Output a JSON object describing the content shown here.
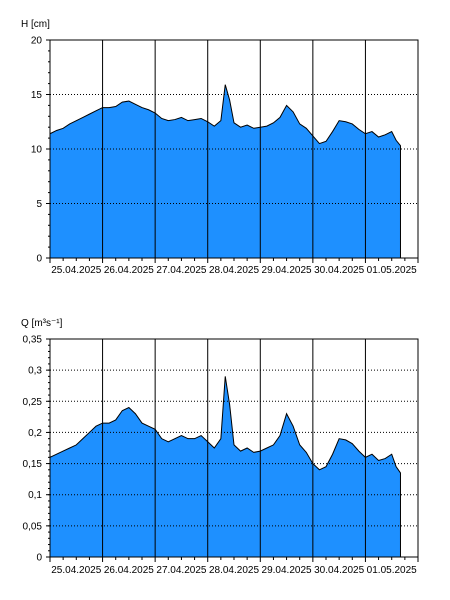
{
  "colors": {
    "fill": "#1E90FF",
    "outline": "#000000",
    "grid": "#000000",
    "background": "#ffffff"
  },
  "chart_data": [
    {
      "type": "area",
      "ylabel": "H [cm]",
      "ylim": [
        0,
        20
      ],
      "yticks": [
        0,
        5,
        10,
        15,
        20
      ],
      "ytick_labels": [
        "0",
        "5",
        "10",
        "15",
        "20"
      ],
      "x_start": "2025-04-25T00:00",
      "x_end": "2025-05-02T00:00",
      "xtick_labels": [
        "25.04.2025",
        "26.04.2025",
        "27.04.2025",
        "28.04.2025",
        "29.04.2025",
        "30.04.2025",
        "01.05.2025"
      ],
      "grid": true,
      "series": [
        {
          "x": [
            "2025-04-25T00:00",
            "2025-04-25T03:00",
            "2025-04-25T06:00",
            "2025-04-25T09:00",
            "2025-04-25T12:00",
            "2025-04-25T15:00",
            "2025-04-25T18:00",
            "2025-04-25T21:00",
            "2025-04-26T00:00",
            "2025-04-26T03:00",
            "2025-04-26T06:00",
            "2025-04-26T09:00",
            "2025-04-26T12:00",
            "2025-04-26T15:00",
            "2025-04-26T18:00",
            "2025-04-26T21:00",
            "2025-04-27T00:00",
            "2025-04-27T03:00",
            "2025-04-27T06:00",
            "2025-04-27T09:00",
            "2025-04-27T12:00",
            "2025-04-27T15:00",
            "2025-04-27T18:00",
            "2025-04-27T21:00",
            "2025-04-28T00:00",
            "2025-04-28T03:00",
            "2025-04-28T06:00",
            "2025-04-28T08:00",
            "2025-04-28T10:00",
            "2025-04-28T12:00",
            "2025-04-28T15:00",
            "2025-04-28T18:00",
            "2025-04-28T21:00",
            "2025-04-29T00:00",
            "2025-04-29T03:00",
            "2025-04-29T06:00",
            "2025-04-29T09:00",
            "2025-04-29T12:00",
            "2025-04-29T15:00",
            "2025-04-29T18:00",
            "2025-04-29T21:00",
            "2025-04-30T00:00",
            "2025-04-30T03:00",
            "2025-04-30T06:00",
            "2025-04-30T09:00",
            "2025-04-30T12:00",
            "2025-04-30T15:00",
            "2025-04-30T18:00",
            "2025-04-30T21:00",
            "2025-05-01T00:00",
            "2025-05-01T03:00",
            "2025-05-01T06:00",
            "2025-05-01T09:00",
            "2025-05-01T12:00",
            "2025-05-01T14:00",
            "2025-05-01T16:00"
          ],
          "values": [
            11.4,
            11.7,
            11.9,
            12.3,
            12.6,
            12.9,
            13.2,
            13.5,
            13.8,
            13.8,
            13.9,
            14.3,
            14.4,
            14.1,
            13.8,
            13.6,
            13.3,
            12.8,
            12.6,
            12.7,
            12.9,
            12.6,
            12.7,
            12.8,
            12.5,
            12.1,
            12.6,
            15.9,
            14.5,
            12.4,
            12.0,
            12.2,
            11.9,
            12.0,
            12.1,
            12.4,
            12.9,
            14.0,
            13.4,
            12.3,
            11.9,
            11.2,
            10.5,
            10.7,
            11.6,
            12.6,
            12.5,
            12.3,
            11.8,
            11.4,
            11.6,
            11.1,
            11.3,
            11.6,
            10.8,
            10.3
          ]
        }
      ]
    },
    {
      "type": "area",
      "ylabel": "Q [m³s⁻¹]",
      "ylim": [
        0,
        0.35
      ],
      "yticks": [
        0,
        0.05,
        0.1,
        0.15,
        0.2,
        0.25,
        0.3,
        0.35
      ],
      "ytick_labels": [
        "0",
        "0,05",
        "0,1",
        "0,15",
        "0,2",
        "0,25",
        "0,3",
        "0,35"
      ],
      "x_start": "2025-04-25T00:00",
      "x_end": "2025-05-02T00:00",
      "xtick_labels": [
        "25.04.2025",
        "26.04.2025",
        "27.04.2025",
        "28.04.2025",
        "29.04.2025",
        "30.04.2025",
        "01.05.2025"
      ],
      "grid": true,
      "series": [
        {
          "x": [
            "2025-04-25T00:00",
            "2025-04-25T03:00",
            "2025-04-25T06:00",
            "2025-04-25T09:00",
            "2025-04-25T12:00",
            "2025-04-25T15:00",
            "2025-04-25T18:00",
            "2025-04-25T21:00",
            "2025-04-26T00:00",
            "2025-04-26T03:00",
            "2025-04-26T06:00",
            "2025-04-26T09:00",
            "2025-04-26T12:00",
            "2025-04-26T15:00",
            "2025-04-26T18:00",
            "2025-04-26T21:00",
            "2025-04-27T00:00",
            "2025-04-27T03:00",
            "2025-04-27T06:00",
            "2025-04-27T09:00",
            "2025-04-27T12:00",
            "2025-04-27T15:00",
            "2025-04-27T18:00",
            "2025-04-27T21:00",
            "2025-04-28T00:00",
            "2025-04-28T03:00",
            "2025-04-28T06:00",
            "2025-04-28T08:00",
            "2025-04-28T10:00",
            "2025-04-28T12:00",
            "2025-04-28T15:00",
            "2025-04-28T18:00",
            "2025-04-28T21:00",
            "2025-04-29T00:00",
            "2025-04-29T03:00",
            "2025-04-29T06:00",
            "2025-04-29T09:00",
            "2025-04-29T12:00",
            "2025-04-29T15:00",
            "2025-04-29T18:00",
            "2025-04-29T21:00",
            "2025-04-30T00:00",
            "2025-04-30T03:00",
            "2025-04-30T06:00",
            "2025-04-30T09:00",
            "2025-04-30T12:00",
            "2025-04-30T15:00",
            "2025-04-30T18:00",
            "2025-04-30T21:00",
            "2025-05-01T00:00",
            "2025-05-01T03:00",
            "2025-05-01T06:00",
            "2025-05-01T09:00",
            "2025-05-01T12:00",
            "2025-05-01T14:00",
            "2025-05-01T16:00"
          ],
          "values": [
            0.16,
            0.165,
            0.17,
            0.175,
            0.18,
            0.19,
            0.2,
            0.21,
            0.215,
            0.215,
            0.22,
            0.235,
            0.24,
            0.23,
            0.215,
            0.21,
            0.205,
            0.19,
            0.185,
            0.19,
            0.195,
            0.19,
            0.19,
            0.195,
            0.185,
            0.175,
            0.19,
            0.29,
            0.245,
            0.18,
            0.17,
            0.175,
            0.168,
            0.17,
            0.175,
            0.18,
            0.195,
            0.23,
            0.21,
            0.18,
            0.168,
            0.15,
            0.14,
            0.145,
            0.165,
            0.19,
            0.188,
            0.182,
            0.17,
            0.16,
            0.165,
            0.155,
            0.158,
            0.165,
            0.145,
            0.135
          ]
        }
      ]
    }
  ]
}
